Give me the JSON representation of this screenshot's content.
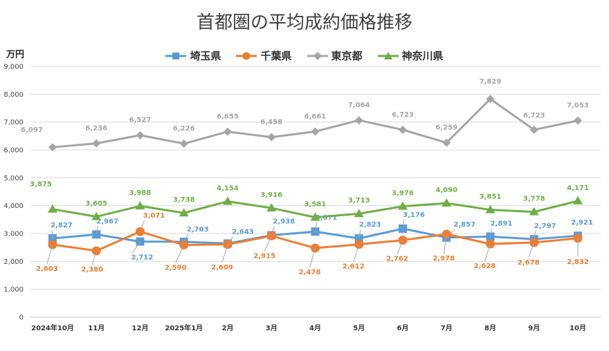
{
  "chart_data": {
    "type": "line",
    "title": "首都圏の平均成約価格推移",
    "ylabel": "万円",
    "xlabel": "",
    "ylim": [
      0,
      9000
    ],
    "yticks": [
      "0",
      "1,000",
      "2,000",
      "3,000",
      "4,000",
      "5,000",
      "6,000",
      "7,000",
      "8,000",
      "9,000"
    ],
    "categories": [
      "2024年10月",
      "11月",
      "12月",
      "2025年1月",
      "2月",
      "3月",
      "4月",
      "5月",
      "6月",
      "7月",
      "8月",
      "9月",
      "10月"
    ],
    "legend_position": "top-center",
    "series": [
      {
        "name": "埼玉県",
        "color": "#5B9BD5",
        "marker": "square",
        "values": [
          2827,
          2967,
          2712,
          2703,
          2643,
          2938,
          3071,
          2823,
          3176,
          2857,
          2891,
          2797,
          2921
        ],
        "labels": [
          "2,827",
          "2,967",
          "2,712",
          "2,703",
          "2,643",
          "2,938",
          "3,071",
          "2,823",
          "3,176",
          "2,857",
          "2,891",
          "2,797",
          "2,921"
        ]
      },
      {
        "name": "千葉県",
        "color": "#ED7D31",
        "marker": "circle",
        "values": [
          2603,
          2380,
          3071,
          2590,
          2609,
          2915,
          2478,
          2612,
          2762,
          2978,
          2628,
          2678,
          2832
        ],
        "labels": [
          "2,603",
          "2,380",
          "3,071",
          "2,590",
          "2,609",
          "2,915",
          "2,478",
          "2,612",
          "2,762",
          "2,978",
          "2,628",
          "2,678",
          "2,832"
        ]
      },
      {
        "name": "東京都",
        "color": "#A5A5A5",
        "marker": "diamond",
        "values": [
          6097,
          6236,
          6527,
          6226,
          6655,
          6458,
          6661,
          7064,
          6723,
          6259,
          7829,
          6723,
          7053
        ],
        "labels": [
          "6,097",
          "6,236",
          "6,527",
          "6,226",
          "6,655",
          "6,458",
          "6,661",
          "7,064",
          "6,723",
          "6,259",
          "7,829",
          "6,723",
          "7,053"
        ]
      },
      {
        "name": "神奈川県",
        "color": "#70AD47",
        "marker": "triangle",
        "values": [
          3875,
          3605,
          3988,
          3738,
          4154,
          3916,
          3581,
          3713,
          3976,
          4090,
          3851,
          3778,
          4171
        ],
        "labels": [
          "3,875",
          "3,605",
          "3,988",
          "3,738",
          "4,154",
          "3,916",
          "3,581",
          "3,713",
          "3,976",
          "4,090",
          "3,851",
          "3,778",
          "4,171"
        ]
      }
    ]
  }
}
